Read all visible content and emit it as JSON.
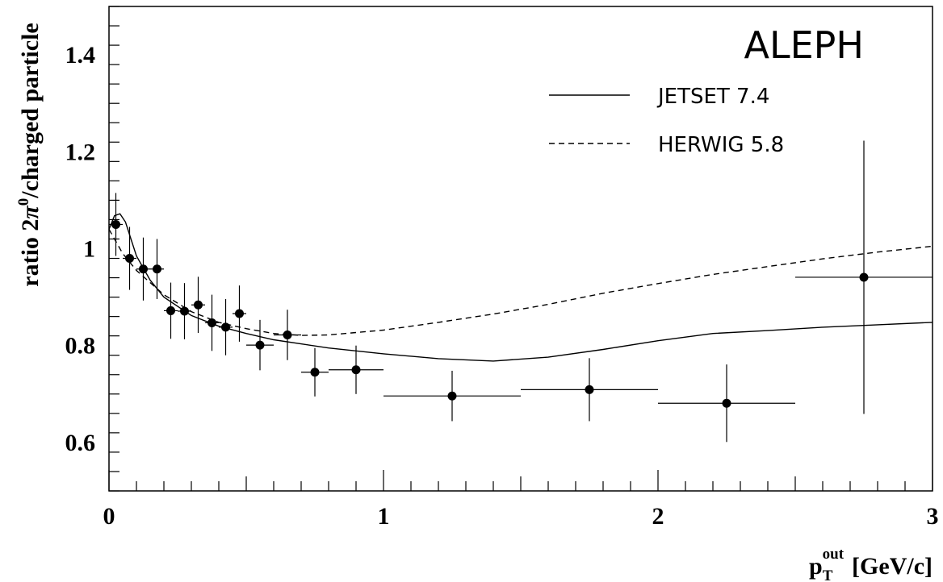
{
  "chart_data": {
    "type": "scatter",
    "title": "ALEPH",
    "xlabel": {
      "base": "p",
      "sub": "T",
      "sup": "out",
      "unit": "[GeV/c]"
    },
    "ylabel": {
      "prefix": "ratio 2",
      "symbol": "π",
      "sup": "0",
      "suffix": "/charged particle"
    },
    "xlim": [
      0,
      3
    ],
    "ylim": [
      0.5,
      1.5
    ],
    "x_ticks": [
      {
        "value": 0,
        "label": "0"
      },
      {
        "value": 1,
        "label": "1"
      },
      {
        "value": 2,
        "label": "2"
      },
      {
        "value": 3,
        "label": "3"
      }
    ],
    "y_ticks": [
      {
        "value": 0.6,
        "label": "0.6"
      },
      {
        "value": 0.8,
        "label": "0.8"
      },
      {
        "value": 1.0,
        "label": "1"
      },
      {
        "value": 1.2,
        "label": "1.2"
      },
      {
        "value": 1.4,
        "label": "1.4"
      }
    ],
    "grid": false,
    "legend_position": "top-right",
    "series": [
      {
        "name": "data",
        "kind": "points",
        "points": [
          {
            "x": 0.025,
            "y": 1.05,
            "xerr": 0.025,
            "yerr": 0.065
          },
          {
            "x": 0.075,
            "y": 0.98,
            "xerr": 0.025,
            "yerr": 0.065
          },
          {
            "x": 0.125,
            "y": 0.958,
            "xerr": 0.025,
            "yerr": 0.065
          },
          {
            "x": 0.175,
            "y": 0.958,
            "xerr": 0.025,
            "yerr": 0.062
          },
          {
            "x": 0.225,
            "y": 0.872,
            "xerr": 0.025,
            "yerr": 0.058
          },
          {
            "x": 0.275,
            "y": 0.871,
            "xerr": 0.025,
            "yerr": 0.058
          },
          {
            "x": 0.325,
            "y": 0.884,
            "xerr": 0.025,
            "yerr": 0.058
          },
          {
            "x": 0.375,
            "y": 0.847,
            "xerr": 0.025,
            "yerr": 0.058
          },
          {
            "x": 0.425,
            "y": 0.838,
            "xerr": 0.025,
            "yerr": 0.058
          },
          {
            "x": 0.475,
            "y": 0.866,
            "xerr": 0.025,
            "yerr": 0.058
          },
          {
            "x": 0.55,
            "y": 0.801,
            "xerr": 0.05,
            "yerr": 0.052
          },
          {
            "x": 0.65,
            "y": 0.822,
            "xerr": 0.05,
            "yerr": 0.052
          },
          {
            "x": 0.75,
            "y": 0.745,
            "xerr": 0.05,
            "yerr": 0.05
          },
          {
            "x": 0.9,
            "y": 0.75,
            "xerr": 0.1,
            "yerr": 0.05
          },
          {
            "x": 1.25,
            "y": 0.696,
            "xerr": 0.25,
            "yerr": 0.052
          },
          {
            "x": 1.75,
            "y": 0.709,
            "xerr": 0.25,
            "yerr": 0.065
          },
          {
            "x": 2.25,
            "y": 0.681,
            "xerr": 0.25,
            "yerr": 0.08
          },
          {
            "x": 2.75,
            "y": 0.941,
            "xerr": 0.25,
            "yerr": 0.282
          }
        ]
      },
      {
        "name": "JETSET 7.4",
        "kind": "line",
        "style": "solid",
        "points": [
          [
            0.0,
            1.04
          ],
          [
            0.02,
            1.068
          ],
          [
            0.04,
            1.072
          ],
          [
            0.06,
            1.055
          ],
          [
            0.08,
            1.02
          ],
          [
            0.1,
            0.985
          ],
          [
            0.15,
            0.935
          ],
          [
            0.2,
            0.9
          ],
          [
            0.3,
            0.862
          ],
          [
            0.4,
            0.84
          ],
          [
            0.5,
            0.825
          ],
          [
            0.6,
            0.812
          ],
          [
            0.8,
            0.795
          ],
          [
            1.0,
            0.783
          ],
          [
            1.2,
            0.773
          ],
          [
            1.4,
            0.768
          ],
          [
            1.6,
            0.776
          ],
          [
            1.8,
            0.792
          ],
          [
            2.0,
            0.81
          ],
          [
            2.2,
            0.825
          ],
          [
            2.4,
            0.831
          ],
          [
            2.6,
            0.838
          ],
          [
            2.8,
            0.843
          ],
          [
            3.0,
            0.848
          ]
        ]
      },
      {
        "name": "HERWIG 5.8",
        "kind": "line",
        "style": "dashed",
        "points": [
          [
            0.0,
            1.04
          ],
          [
            0.05,
            0.99
          ],
          [
            0.1,
            0.955
          ],
          [
            0.15,
            0.93
          ],
          [
            0.2,
            0.905
          ],
          [
            0.3,
            0.87
          ],
          [
            0.4,
            0.848
          ],
          [
            0.5,
            0.835
          ],
          [
            0.6,
            0.825
          ],
          [
            0.7,
            0.821
          ],
          [
            0.8,
            0.822
          ],
          [
            1.0,
            0.832
          ],
          [
            1.2,
            0.848
          ],
          [
            1.4,
            0.865
          ],
          [
            1.6,
            0.885
          ],
          [
            1.8,
            0.908
          ],
          [
            2.0,
            0.928
          ],
          [
            2.2,
            0.947
          ],
          [
            2.4,
            0.963
          ],
          [
            2.6,
            0.979
          ],
          [
            2.8,
            0.993
          ],
          [
            3.0,
            1.005
          ]
        ]
      }
    ]
  }
}
